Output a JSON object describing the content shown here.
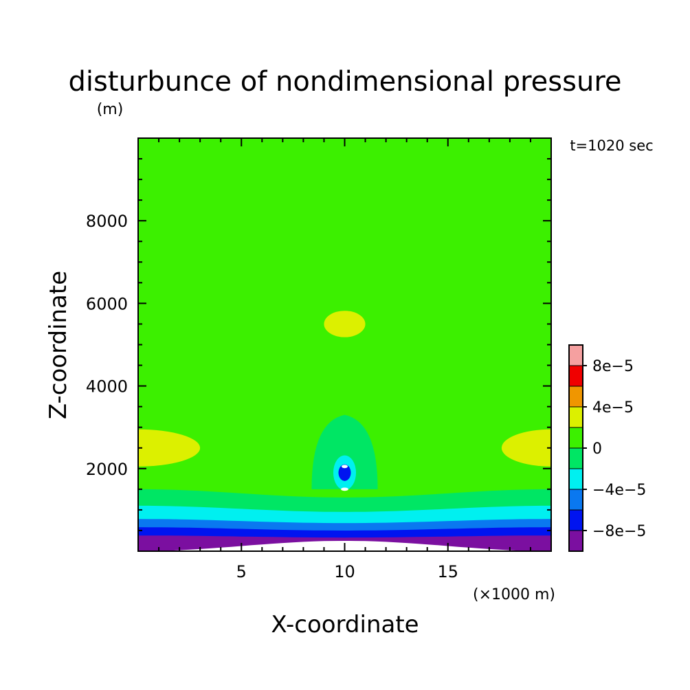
{
  "chart_data": {
    "type": "heatmap",
    "title": "disturbunce of nondimensional pressure",
    "ylabel_unit": "(m)",
    "xlabel": "X-coordinate",
    "ylabel": "Z-coordinate",
    "xlabel_unit": "(×1000 m)",
    "time_annotation": "t=1020 sec",
    "x_range": [
      0,
      20
    ],
    "y_range": [
      0,
      10000
    ],
    "x_ticks": [
      5,
      10,
      15
    ],
    "x_tick_labels": [
      "5",
      "10",
      "15"
    ],
    "y_ticks": [
      2000,
      4000,
      6000,
      8000
    ],
    "y_tick_labels": [
      "2000",
      "4000",
      "6000",
      "8000"
    ],
    "colorbar": {
      "levels": [
        -0.0001,
        -8e-05,
        -6e-05,
        -4e-05,
        -2e-05,
        0,
        2e-05,
        4e-05,
        6e-05,
        8e-05,
        0.0001
      ],
      "colors": [
        "#7b0fa0",
        "#0014f0",
        "#0a78f0",
        "#00f0f0",
        "#00e664",
        "#3cf000",
        "#dcf000",
        "#f09600",
        "#f00000",
        "#f5a0a0"
      ],
      "tick_labels": [
        {
          "value": -8e-05,
          "label": "-8e-5"
        },
        {
          "value": -4e-05,
          "label": "-4e-5"
        },
        {
          "value": 0,
          "label": "0"
        },
        {
          "value": 4e-05,
          "label": "4e-5"
        },
        {
          "value": 8e-05,
          "label": "8e-5"
        }
      ]
    },
    "background_level_color": "#3cf000",
    "surface_layers": [
      {
        "color": "#00e664",
        "z_top_edges_m": 1500,
        "z_top_center_m": 1300
      },
      {
        "color": "#00f0f0",
        "z_top_edges_m": 1100,
        "z_top_center_m": 950
      },
      {
        "color": "#0a78f0",
        "z_top_edges_m": 780,
        "z_top_center_m": 680
      },
      {
        "color": "#0014f0",
        "z_top_edges_m": 580,
        "z_top_center_m": 500
      },
      {
        "color": "#7b0fa0",
        "z_top_edges_m": 380,
        "z_top_center_m": 330
      },
      {
        "color": "#ffffff",
        "z_top_edges_m": 0,
        "z_top_center_m": 250
      }
    ],
    "features": [
      {
        "kind": "positive-blob",
        "color": "#dcf000",
        "x_center_km": 10.0,
        "z_center_m": 5500,
        "x_halfwidth_km": 1.0,
        "z_halfheight_m": 320
      },
      {
        "kind": "positive-blob",
        "color": "#dcf000",
        "x_center_km": 0.0,
        "z_center_m": 2500,
        "x_halfwidth_km": 3.0,
        "z_halfheight_m": 450
      },
      {
        "kind": "positive-blob",
        "color": "#dcf000",
        "x_center_km": 20.0,
        "z_center_m": 2500,
        "x_halfwidth_km": 2.4,
        "z_halfheight_m": 450
      },
      {
        "kind": "negative-plume",
        "color": "#00e664",
        "x_center_km": 10.0,
        "z_base_m": 1500,
        "z_top_m": 3300,
        "x_halfwidth_km": 1.6
      },
      {
        "kind": "core",
        "color": "#00f0f0",
        "x_center_km": 10.0,
        "z_center_m": 1900,
        "x_halfwidth_km": 0.55,
        "z_halfheight_m": 420
      },
      {
        "kind": "core",
        "color": "#0014f0",
        "x_center_km": 10.0,
        "z_center_m": 1900,
        "x_halfwidth_km": 0.3,
        "z_halfheight_m": 200
      },
      {
        "kind": "core",
        "color": "#ffffff",
        "x_center_km": 10.0,
        "z_center_m": 2050,
        "x_halfwidth_km": 0.15,
        "z_halfheight_m": 40
      },
      {
        "kind": "core",
        "color": "#ffffff",
        "x_center_km": 10.0,
        "z_center_m": 1500,
        "x_halfwidth_km": 0.18,
        "z_halfheight_m": 40
      }
    ]
  }
}
